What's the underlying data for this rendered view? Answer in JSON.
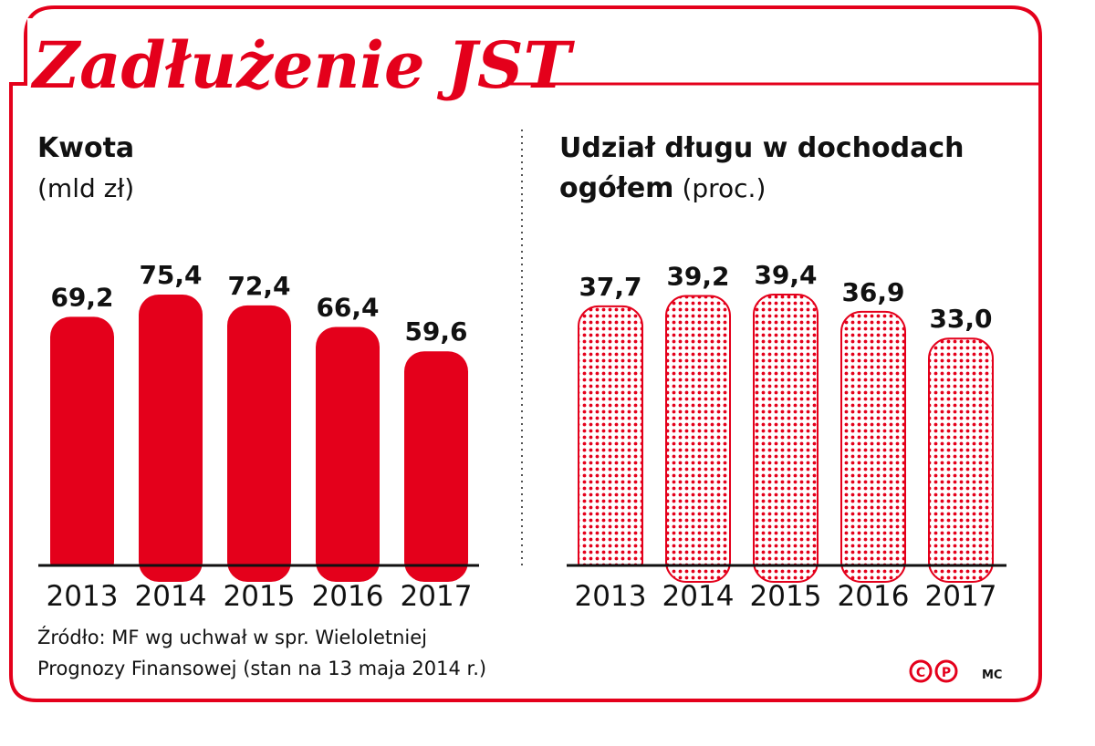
{
  "title": "Zadłużenie JST",
  "colors": {
    "accent": "#e4001b",
    "text": "#111111",
    "background": "#ffffff"
  },
  "chart_data": [
    {
      "type": "bar",
      "title": "Kwota",
      "unit": "(mld zł)",
      "categories": [
        "2013",
        "2014",
        "2015",
        "2016",
        "2017"
      ],
      "values": [
        69.2,
        75.4,
        72.4,
        66.4,
        59.6
      ],
      "value_labels": [
        "69,2",
        "75,4",
        "72,4",
        "66,4",
        "59,6"
      ],
      "fill": "solid",
      "grid": false,
      "ylim": [
        0,
        75.4
      ]
    },
    {
      "type": "bar",
      "title_lines": [
        "Udział długu w dochodach",
        "ogółem"
      ],
      "unit": "(proc.)",
      "categories": [
        "2013",
        "2014",
        "2015",
        "2016",
        "2017"
      ],
      "values": [
        37.7,
        39.2,
        39.4,
        36.9,
        33.0
      ],
      "value_labels": [
        "37,7",
        "39,2",
        "39,4",
        "36,9",
        "33,0"
      ],
      "fill": "dotted-pattern",
      "grid": false,
      "ylim": [
        0,
        39.4
      ]
    }
  ],
  "source_lines": [
    "Źródło: MF wg uchwał w spr. Wieloletniej",
    "Prognozy Finansowej (stan na 13 maja 2014 r.)"
  ],
  "credits": {
    "cp_glyph_1": "C",
    "cp_glyph_2": "P",
    "author": "MC"
  }
}
